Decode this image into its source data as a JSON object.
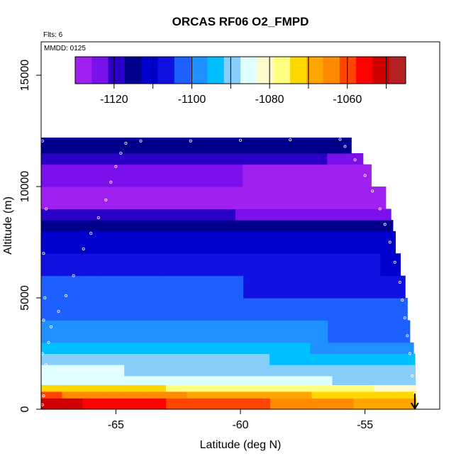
{
  "chart_data": {
    "type": "heatmap",
    "title": "ORCAS RF06 O2_FMPD",
    "flights_note": "Flts: 6",
    "date_note": "MMDD: 0125",
    "xlabel": "Latitude (deg N)",
    "ylabel": "Altitude (m)",
    "xlim": [
      -68.0,
      -52.0
    ],
    "ylim": [
      0,
      16500
    ],
    "x_ticks": [
      -65,
      -60,
      -55
    ],
    "x_tick_labels": [
      "-65",
      "-60",
      "-55"
    ],
    "y_ticks": [
      0,
      5000,
      10000,
      15000
    ],
    "y_tick_labels": [
      "0",
      "5000",
      "10000",
      "15000"
    ],
    "colorbar": {
      "range": [
        -1130,
        -1045
      ],
      "ticks": [
        -1120,
        -1110,
        -1100,
        -1090,
        -1080,
        -1070,
        -1060,
        -1050
      ],
      "tick_labels": [
        "-1120",
        "",
        "-1100",
        "",
        "-1080",
        "",
        "-1060",
        ""
      ],
      "colors": [
        "#a020f0",
        "#7a10ea",
        "#2a00c8",
        "#00008b",
        "#0000cd",
        "#1010e0",
        "#1e5fff",
        "#1e90ff",
        "#00bfff",
        "#87cefa",
        "#e0ffff",
        "#fffacd",
        "#ffff80",
        "#ffd700",
        "#ffa500",
        "#ff8c00",
        "#ff4500",
        "#ff0000",
        "#d00000",
        "#b22222"
      ]
    },
    "altitude_layers_m": [
      [
        0,
        500,
        -1052
      ],
      [
        500,
        800,
        -1062
      ],
      [
        800,
        1100,
        -1072
      ],
      [
        1100,
        1500,
        -1084
      ],
      [
        1500,
        2000,
        -1087
      ],
      [
        2000,
        2500,
        -1090
      ],
      [
        2500,
        3000,
        -1094
      ],
      [
        3000,
        4000,
        -1098
      ],
      [
        4000,
        5000,
        -1101
      ],
      [
        5000,
        6000,
        -1103
      ],
      [
        6000,
        7000,
        -1106
      ],
      [
        7000,
        8000,
        -1110
      ],
      [
        8000,
        8500,
        -1114
      ],
      [
        8500,
        9000,
        -1120
      ],
      [
        9000,
        10000,
        -1126
      ],
      [
        10000,
        11000,
        -1124
      ],
      [
        11000,
        11500,
        -1119
      ],
      [
        11500,
        12200,
        -1114
      ]
    ],
    "coverage_edge": [
      [
        12200,
        -55.9
      ],
      [
        11800,
        -55.5
      ],
      [
        11300,
        -55.1
      ],
      [
        10800,
        -54.9
      ],
      [
        10200,
        -54.6
      ],
      [
        9600,
        -54.2
      ],
      [
        9000,
        -54.0
      ],
      [
        8400,
        -53.9
      ],
      [
        7600,
        -53.8
      ],
      [
        6600,
        -53.6
      ],
      [
        5600,
        -53.4
      ],
      [
        4800,
        -53.3
      ],
      [
        4000,
        -53.3
      ],
      [
        3000,
        -53.1
      ],
      [
        2500,
        -53.0
      ],
      [
        0,
        -52.95
      ]
    ],
    "flight_track": [
      [
        -67.95,
        200
      ],
      [
        -67.9,
        600
      ],
      [
        -67.85,
        1200
      ],
      [
        -67.8,
        2000
      ],
      [
        -67.7,
        3000
      ],
      [
        -67.6,
        3700
      ],
      [
        -67.3,
        4400
      ],
      [
        -67.0,
        5100
      ],
      [
        -66.7,
        6000
      ],
      [
        -66.3,
        7200
      ],
      [
        -66.0,
        7900
      ],
      [
        -65.7,
        8600
      ],
      [
        -65.4,
        9400
      ],
      [
        -65.2,
        10200
      ],
      [
        -65.0,
        10900
      ],
      [
        -64.8,
        11500
      ],
      [
        -64.6,
        11950
      ],
      [
        -64.0,
        12050
      ],
      [
        -62.0,
        12050
      ],
      [
        -60.0,
        12080
      ],
      [
        -58.0,
        12100
      ],
      [
        -56.0,
        12120
      ],
      [
        -55.8,
        11800
      ],
      [
        -55.4,
        11200
      ],
      [
        -55.0,
        10500
      ],
      [
        -54.7,
        9800
      ],
      [
        -54.4,
        9000
      ],
      [
        -54.2,
        8300
      ],
      [
        -54.0,
        7500
      ],
      [
        -53.8,
        6600
      ],
      [
        -53.6,
        5700
      ],
      [
        -53.5,
        4900
      ],
      [
        -53.4,
        4100
      ],
      [
        -53.3,
        3300
      ],
      [
        -53.2,
        2500
      ],
      [
        -53.1,
        1500
      ],
      [
        -53.0,
        700
      ],
      [
        -67.95,
        12050
      ],
      [
        -67.8,
        9000
      ],
      [
        -67.9,
        7000
      ],
      [
        -67.85,
        5000
      ],
      [
        -67.9,
        4000
      ],
      [
        -67.95,
        2500
      ]
    ],
    "arrow_latitude": -53.0
  }
}
